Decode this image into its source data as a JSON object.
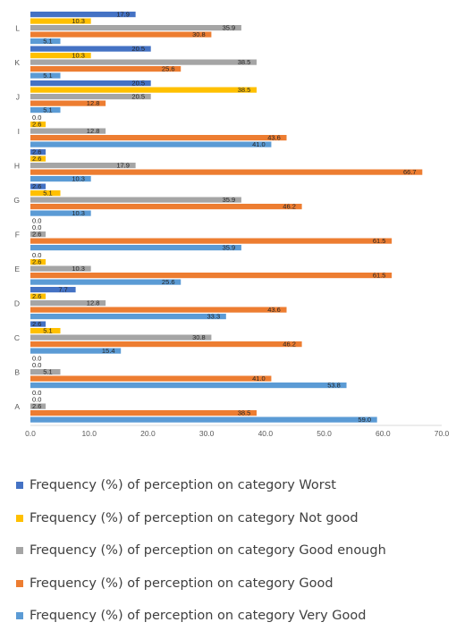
{
  "chart_data": {
    "type": "bar",
    "orientation": "horizontal",
    "title": "",
    "xlabel": "",
    "ylabel": "",
    "categories": [
      "A",
      "B",
      "C",
      "D",
      "E",
      "F",
      "G",
      "H",
      "I",
      "J",
      "K",
      "L"
    ],
    "xlim": [
      0,
      70
    ],
    "x_ticks": [
      "0.0",
      "10.0",
      "20.0",
      "30.0",
      "40.0",
      "50.0",
      "60.0",
      "70.0"
    ],
    "grid": false,
    "legend_position": "bottom",
    "series": [
      {
        "name": "Frequency (%) of perception on category Worst",
        "color": "#4472c4",
        "values": [
          0.0,
          0.0,
          2.6,
          7.7,
          0.0,
          0.0,
          2.6,
          2.6,
          0.0,
          20.5,
          20.5,
          17.9
        ]
      },
      {
        "name": "Frequency (%) of perception on category Not good",
        "color": "#ffc000",
        "values": [
          0.0,
          0.0,
          5.1,
          2.6,
          2.6,
          0.0,
          5.1,
          2.6,
          2.6,
          38.5,
          10.3,
          10.3
        ]
      },
      {
        "name": "Frequency (%) of perception on category Good enough",
        "color": "#a5a5a5",
        "values": [
          2.6,
          5.1,
          30.8,
          12.8,
          10.3,
          2.6,
          35.9,
          17.9,
          12.8,
          20.5,
          38.5,
          35.9
        ]
      },
      {
        "name": "Frequency (%) of perception on category Good",
        "color": "#ed7d31",
        "values": [
          38.5,
          41.0,
          46.2,
          43.6,
          61.5,
          61.5,
          46.2,
          66.7,
          43.6,
          12.8,
          25.6,
          30.8
        ]
      },
      {
        "name": "Frequency (%) of perception on category Very Good",
        "color": "#5b9bd5",
        "values": [
          59.0,
          53.8,
          15.4,
          33.3,
          25.6,
          35.9,
          10.3,
          10.3,
          41.0,
          5.1,
          5.1,
          5.1
        ]
      }
    ]
  }
}
